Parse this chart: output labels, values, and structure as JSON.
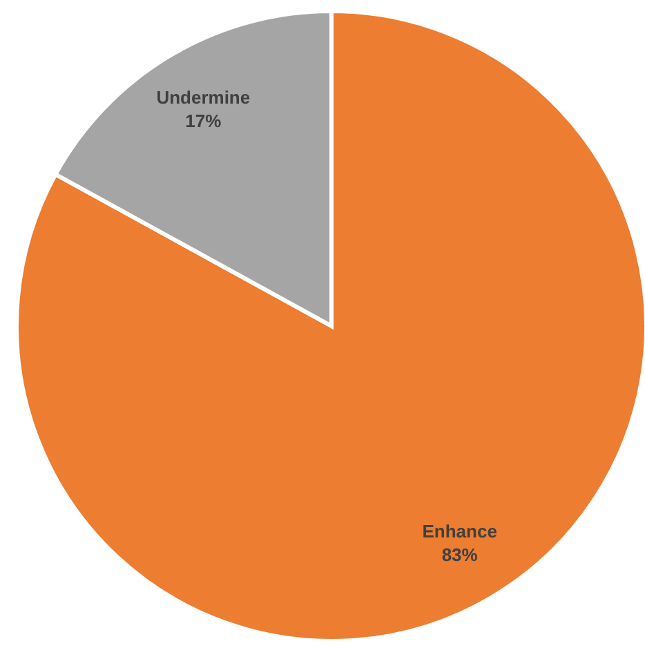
{
  "chart_data": {
    "type": "pie",
    "categories": [
      "Enhance",
      "Undermine"
    ],
    "values": [
      83,
      17
    ],
    "colors": [
      "#ed7d31",
      "#a5a5a5"
    ],
    "value_labels": [
      "83%",
      "17%"
    ]
  }
}
